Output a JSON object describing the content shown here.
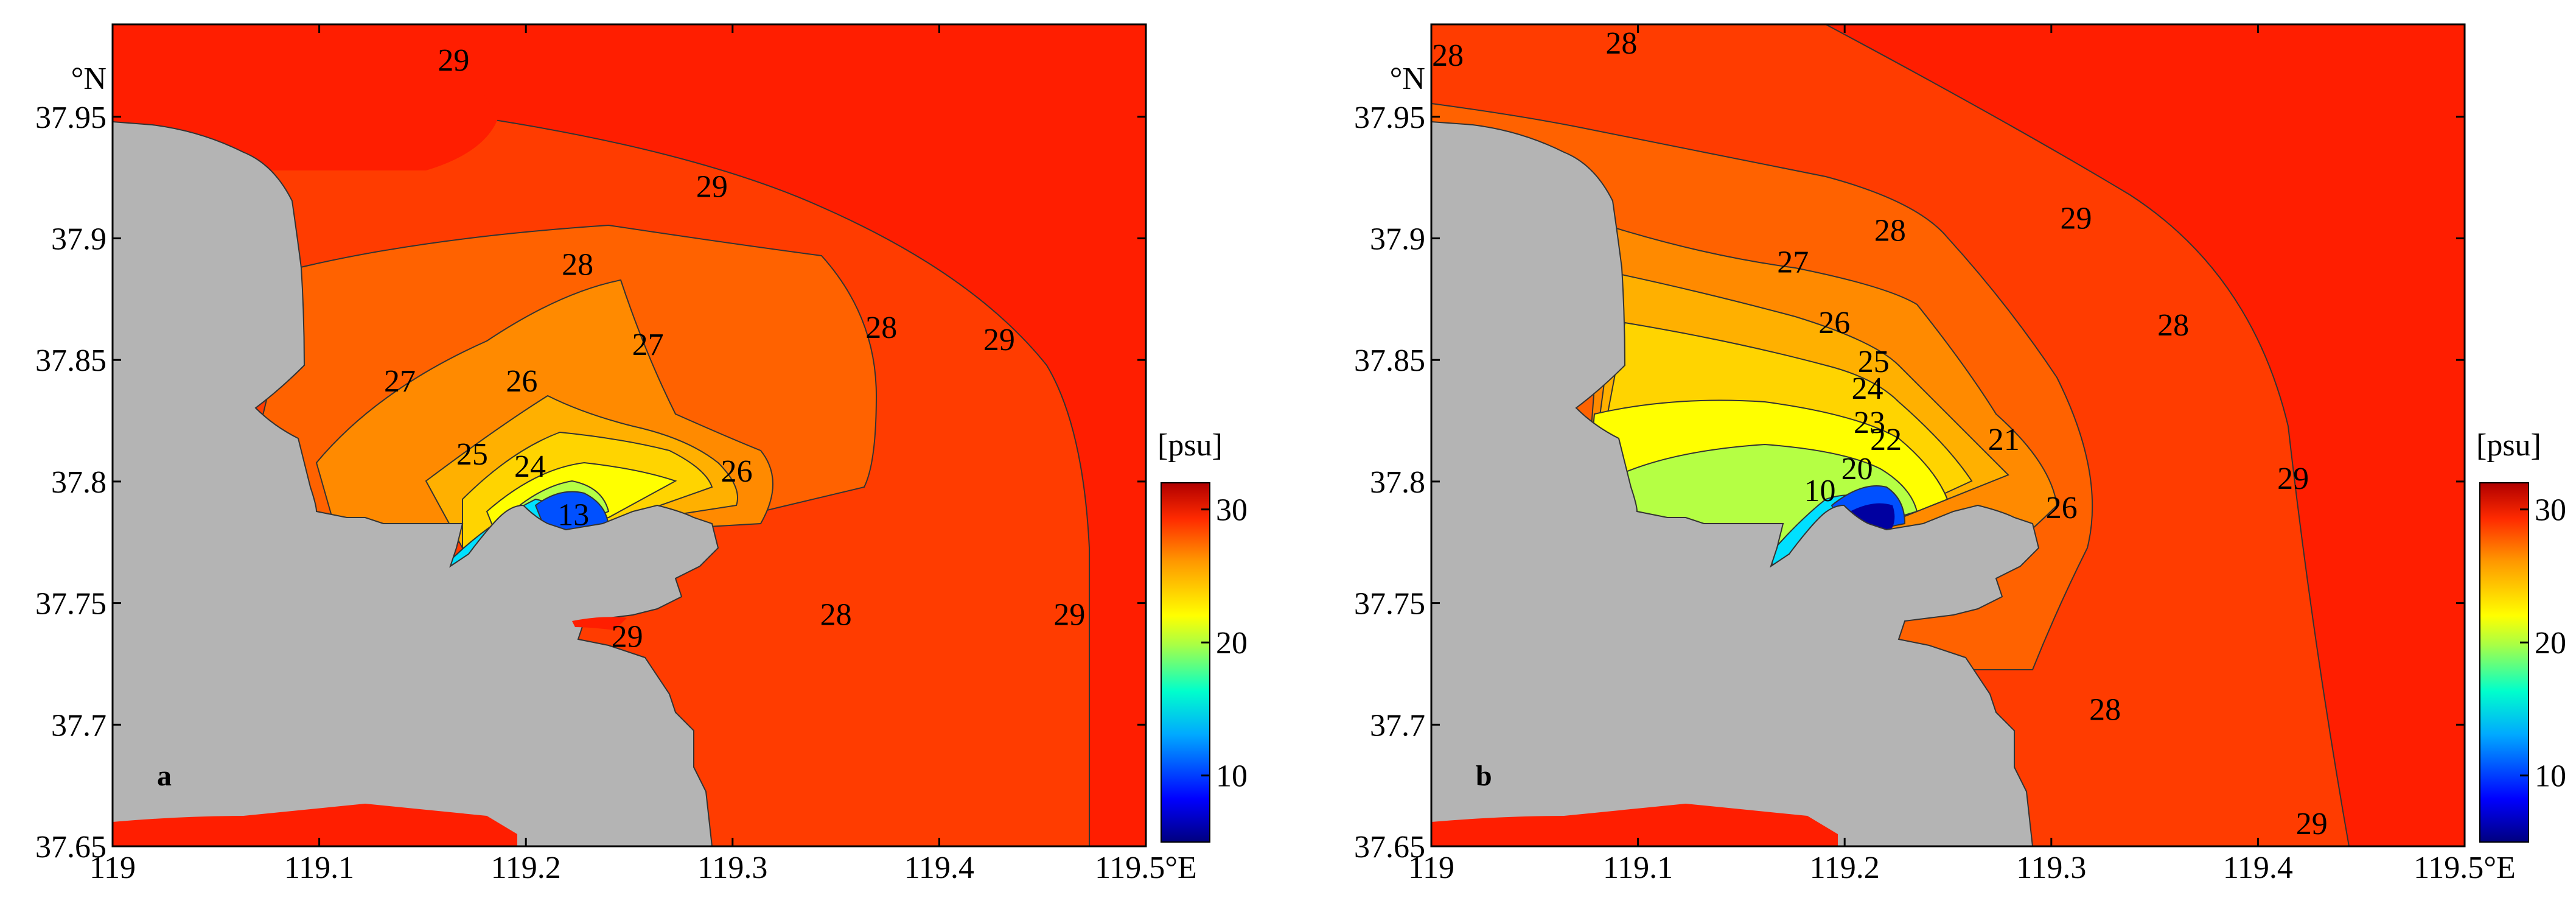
{
  "chart_data": [
    {
      "type": "contour-map",
      "panel_label": "a",
      "unit": "[psu]",
      "xlim": [
        119,
        119.5
      ],
      "ylim": [
        37.65,
        37.988
      ],
      "x_ticks": [
        "119",
        "119.1",
        "119.2",
        "119.3",
        "119.4",
        "119.5°E"
      ],
      "y_ticks": [
        "37.65",
        "37.7",
        "37.75",
        "37.8",
        "37.85",
        "37.9",
        "37.95"
      ],
      "y_unit": "°N",
      "colorbar_ticks": [
        "10",
        "20",
        "30"
      ],
      "colorbar_range": [
        5,
        32
      ],
      "contour_labels": [
        {
          "text": "29",
          "lon": 119.165,
          "lat": 37.972
        },
        {
          "text": "29",
          "lon": 119.29,
          "lat": 37.92
        },
        {
          "text": "28",
          "lon": 119.225,
          "lat": 37.888
        },
        {
          "text": "28",
          "lon": 119.372,
          "lat": 37.862
        },
        {
          "text": "29",
          "lon": 119.429,
          "lat": 37.857
        },
        {
          "text": "27",
          "lon": 119.139,
          "lat": 37.84
        },
        {
          "text": "26",
          "lon": 119.198,
          "lat": 37.84
        },
        {
          "text": "27",
          "lon": 119.259,
          "lat": 37.855
        },
        {
          "text": "25",
          "lon": 119.174,
          "lat": 37.81
        },
        {
          "text": "24",
          "lon": 119.202,
          "lat": 37.805
        },
        {
          "text": "26",
          "lon": 119.302,
          "lat": 37.803
        },
        {
          "text": "13",
          "lon": 119.223,
          "lat": 37.785
        },
        {
          "text": "28",
          "lon": 119.35,
          "lat": 37.744
        },
        {
          "text": "29",
          "lon": 119.463,
          "lat": 37.744
        },
        {
          "text": "29",
          "lon": 119.249,
          "lat": 37.735
        }
      ]
    },
    {
      "type": "contour-map",
      "panel_label": "b",
      "unit": "[psu]",
      "xlim": [
        119,
        119.5
      ],
      "ylim": [
        37.65,
        37.988
      ],
      "x_ticks": [
        "119",
        "119.1",
        "119.2",
        "119.3",
        "119.4",
        "119.5°E"
      ],
      "y_ticks": [
        "37.65",
        "37.7",
        "37.75",
        "37.8",
        "37.85",
        "37.9",
        "37.95"
      ],
      "y_unit": "°N",
      "colorbar_ticks": [
        "10",
        "20",
        "30"
      ],
      "colorbar_range": [
        5,
        32
      ],
      "contour_labels": [
        {
          "text": "28",
          "lon": 119.008,
          "lat": 37.974
        },
        {
          "text": "28",
          "lon": 119.092,
          "lat": 37.979
        },
        {
          "text": "29",
          "lon": 119.312,
          "lat": 37.907
        },
        {
          "text": "28",
          "lon": 119.222,
          "lat": 37.902
        },
        {
          "text": "27",
          "lon": 119.175,
          "lat": 37.889
        },
        {
          "text": "26",
          "lon": 119.195,
          "lat": 37.864
        },
        {
          "text": "25",
          "lon": 119.214,
          "lat": 37.848
        },
        {
          "text": "24",
          "lon": 119.211,
          "lat": 37.837
        },
        {
          "text": "23",
          "lon": 119.212,
          "lat": 37.823
        },
        {
          "text": "22",
          "lon": 119.22,
          "lat": 37.816
        },
        {
          "text": "21",
          "lon": 119.277,
          "lat": 37.816
        },
        {
          "text": "20",
          "lon": 119.206,
          "lat": 37.804
        },
        {
          "text": "10",
          "lon": 119.188,
          "lat": 37.795
        },
        {
          "text": "26",
          "lon": 119.305,
          "lat": 37.788
        },
        {
          "text": "28",
          "lon": 119.359,
          "lat": 37.863
        },
        {
          "text": "29",
          "lon": 119.417,
          "lat": 37.8
        },
        {
          "text": "28",
          "lon": 119.326,
          "lat": 37.705
        },
        {
          "text": "29",
          "lon": 119.426,
          "lat": 37.658
        }
      ]
    }
  ],
  "colors": {
    "land": "#b4b4b4",
    "salinity_29_plus": "#ff1e00",
    "salinity_28": "#ff3c00",
    "salinity_27": "#ff6200",
    "salinity_26": "#ff8a00",
    "salinity_25": "#ffb000",
    "salinity_24": "#ffd400",
    "salinity_22": "#ffff00",
    "salinity_20": "#b5ff44",
    "salinity_15": "#00e0ff",
    "salinity_10": "#0050ff",
    "salinity_5": "#0000a0"
  }
}
